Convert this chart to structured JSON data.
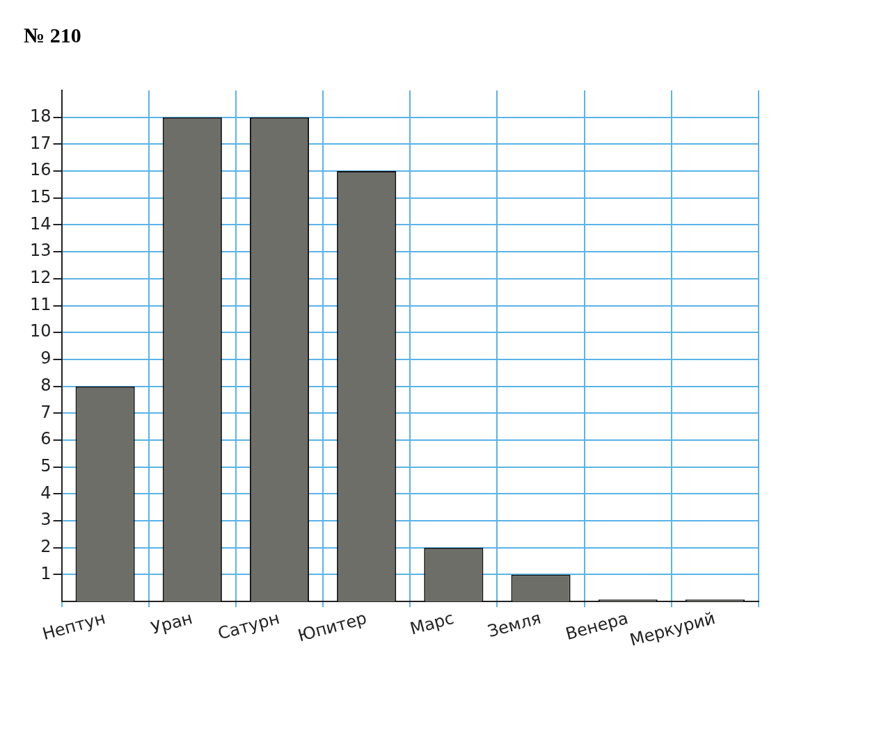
{
  "chart_data": {
    "type": "bar",
    "title": "№ 210",
    "categories": [
      "Нептун",
      "Уран",
      "Сатурн",
      "Юпитер",
      "Марс",
      "Земля",
      "Венера",
      "Меркурий"
    ],
    "values": [
      8,
      18,
      18,
      16,
      2,
      1,
      0,
      0
    ],
    "color": "#6e6e69",
    "ylim": [
      0,
      19
    ],
    "yticks": [
      1,
      2,
      3,
      4,
      5,
      6,
      7,
      8,
      9,
      10,
      11,
      12,
      13,
      14,
      15,
      16,
      17,
      18
    ],
    "grid": true
  }
}
